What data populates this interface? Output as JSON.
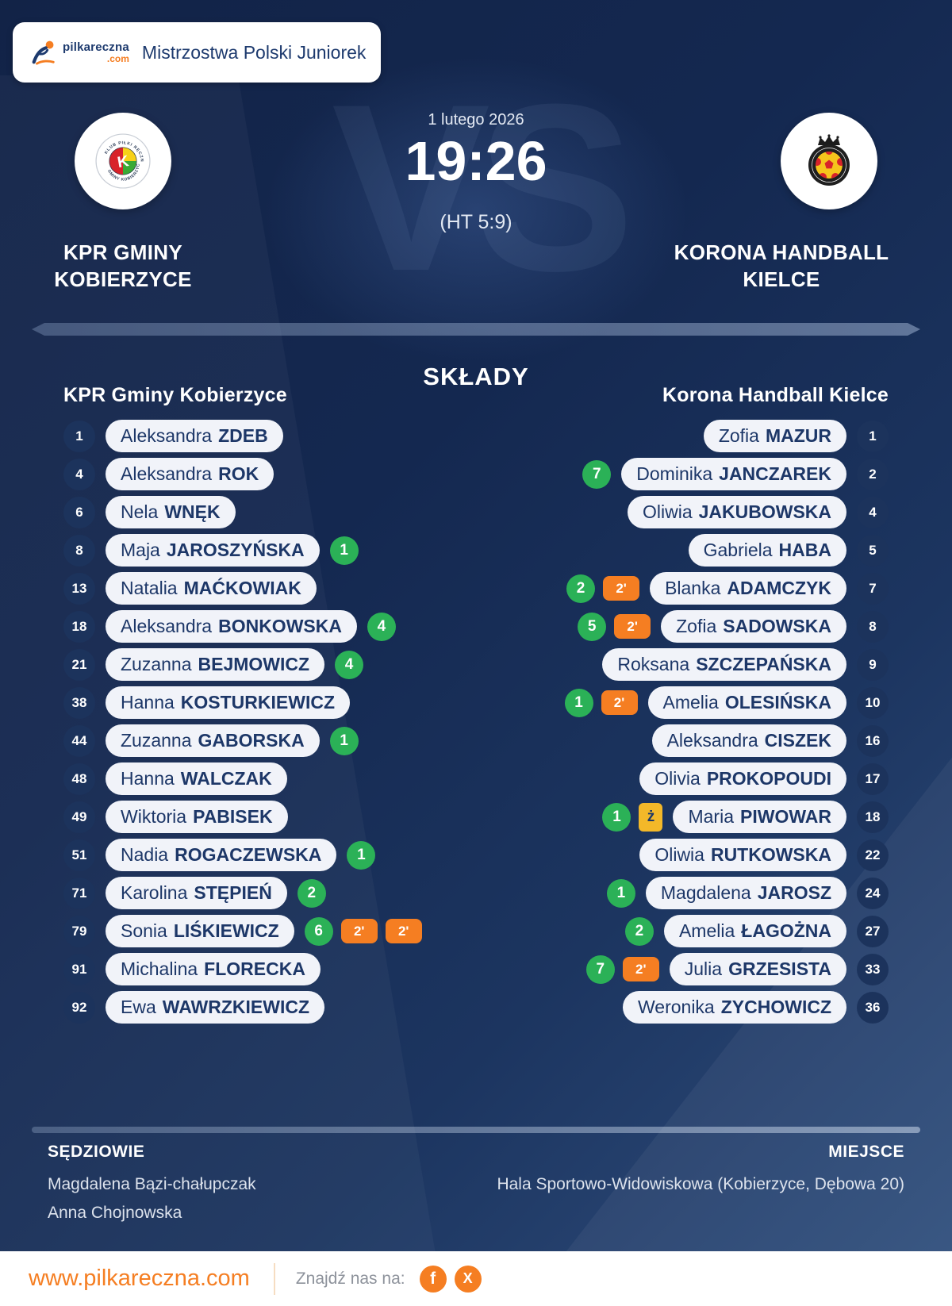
{
  "header": {
    "brand_name": "pilkareczna",
    "brand_tld": ".com",
    "competition": "Mistrzostwa Polski Juniorek"
  },
  "match": {
    "date": "1 lutego 2026",
    "score": "19:26",
    "halftime": "(HT 5:9)",
    "vs": "VS",
    "home": {
      "name_lines": [
        "KPR GMINY",
        "KOBIERZYCE"
      ]
    },
    "away": {
      "name_lines": [
        "KORONA HANDBALL",
        "KIELCE"
      ]
    }
  },
  "lineups": {
    "title": "SKŁADY",
    "home_team": "KPR Gminy Kobierzyce",
    "away_team": "Korona Handball Kielce",
    "home": [
      {
        "number": "1",
        "first": "Aleksandra",
        "last": "ZDEB",
        "goals": null,
        "cards": []
      },
      {
        "number": "4",
        "first": "Aleksandra",
        "last": "ROK",
        "goals": null,
        "cards": []
      },
      {
        "number": "6",
        "first": "Nela",
        "last": "WNĘK",
        "goals": null,
        "cards": []
      },
      {
        "number": "8",
        "first": "Maja",
        "last": "JAROSZYŃSKA",
        "goals": "1",
        "cards": []
      },
      {
        "number": "13",
        "first": "Natalia",
        "last": "MAĆKOWIAK",
        "goals": null,
        "cards": []
      },
      {
        "number": "18",
        "first": "Aleksandra",
        "last": "BONKOWSKA",
        "goals": "4",
        "cards": []
      },
      {
        "number": "21",
        "first": "Zuzanna",
        "last": "BEJMOWICZ",
        "goals": "4",
        "cards": []
      },
      {
        "number": "38",
        "first": "Hanna",
        "last": "KOSTURKIEWICZ",
        "goals": null,
        "cards": []
      },
      {
        "number": "44",
        "first": "Zuzanna",
        "last": "GABORSKA",
        "goals": "1",
        "cards": []
      },
      {
        "number": "48",
        "first": "Hanna",
        "last": "WALCZAK",
        "goals": null,
        "cards": []
      },
      {
        "number": "49",
        "first": "Wiktoria",
        "last": "PABISEK",
        "goals": null,
        "cards": []
      },
      {
        "number": "51",
        "first": "Nadia",
        "last": "ROGACZEWSKA",
        "goals": "1",
        "cards": []
      },
      {
        "number": "71",
        "first": "Karolina",
        "last": "STĘPIEŃ",
        "goals": "2",
        "cards": []
      },
      {
        "number": "79",
        "first": "Sonia",
        "last": "LIŚKIEWICZ",
        "goals": "6",
        "cards": [
          "2'",
          "2'"
        ]
      },
      {
        "number": "91",
        "first": "Michalina",
        "last": "FLORECKA",
        "goals": null,
        "cards": []
      },
      {
        "number": "92",
        "first": "Ewa",
        "last": "WAWRZKIEWICZ",
        "goals": null,
        "cards": []
      }
    ],
    "away": [
      {
        "number": "1",
        "first": "Zofia",
        "last": "MAZUR",
        "goals": null,
        "cards": []
      },
      {
        "number": "2",
        "first": "Dominika",
        "last": "JANCZAREK",
        "goals": "7",
        "cards": []
      },
      {
        "number": "4",
        "first": "Oliwia",
        "last": "JAKUBOWSKA",
        "goals": null,
        "cards": []
      },
      {
        "number": "5",
        "first": "Gabriela",
        "last": "HABA",
        "goals": null,
        "cards": []
      },
      {
        "number": "7",
        "first": "Blanka",
        "last": "ADAMCZYK",
        "goals": "2",
        "cards": [
          "2'"
        ]
      },
      {
        "number": "8",
        "first": "Zofia",
        "last": "SADOWSKA",
        "goals": "5",
        "cards": [
          "2'"
        ]
      },
      {
        "number": "9",
        "first": "Roksana",
        "last": "SZCZEPAŃSKA",
        "goals": null,
        "cards": []
      },
      {
        "number": "10",
        "first": "Amelia",
        "last": "OLESIŃSKA",
        "goals": "1",
        "cards": [
          "2'"
        ]
      },
      {
        "number": "16",
        "first": "Aleksandra",
        "last": "CISZEK",
        "goals": null,
        "cards": []
      },
      {
        "number": "17",
        "first": "Olivia",
        "last": "PROKOPOUDI",
        "goals": null,
        "cards": []
      },
      {
        "number": "18",
        "first": "Maria",
        "last": "PIWOWAR",
        "goals": "1",
        "cards": [
          "ż"
        ]
      },
      {
        "number": "22",
        "first": "Oliwia",
        "last": "RUTKOWSKA",
        "goals": null,
        "cards": []
      },
      {
        "number": "24",
        "first": "Magdalena",
        "last": "JAROSZ",
        "goals": "1",
        "cards": []
      },
      {
        "number": "27",
        "first": "Amelia",
        "last": "ŁAGOŻNA",
        "goals": "2",
        "cards": []
      },
      {
        "number": "33",
        "first": "Julia",
        "last": "GRZESISTA",
        "goals": "7",
        "cards": [
          "2'"
        ]
      },
      {
        "number": "36",
        "first": "Weronika",
        "last": "ZYCHOWICZ",
        "goals": null,
        "cards": []
      }
    ]
  },
  "meta": {
    "referees_label": "SĘDZIOWIE",
    "referees": [
      "Magdalena Bązi-chałupczak",
      "Anna Chojnowska"
    ],
    "venue_label": "MIEJSCE",
    "venue": "Hala Sportowo-Widowiskowa (Kobierzyce, Dębowa 20)"
  },
  "footer": {
    "website": "www.pilkareczna.com",
    "social_label": "Znajdź nas na:",
    "facebook_glyph": "f",
    "x_glyph": "X"
  },
  "colors": {
    "accent_orange": "#f57e22",
    "goal_green": "#2bb157",
    "yellow_card": "#f3b829",
    "navy_text": "#1d3768",
    "background_navy": "#142850"
  }
}
